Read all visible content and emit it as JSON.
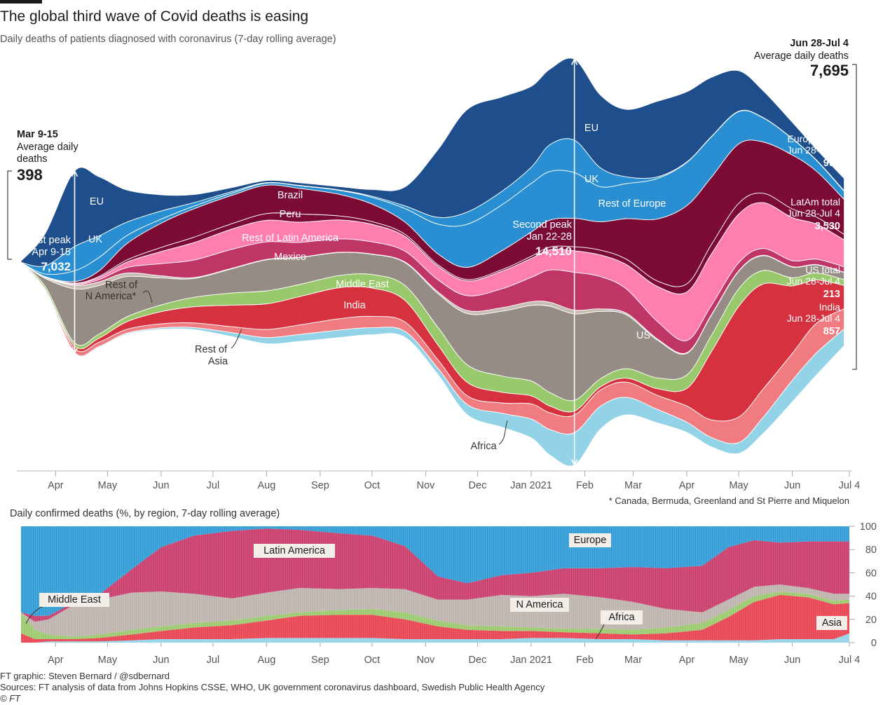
{
  "title": "The global third wave of Covid deaths is easing",
  "subtitle": "Daily deaths of patients diagnosed with coronavirus (7-day rolling average)",
  "colors": {
    "EU": "#1f4e8c",
    "UK": "#2a8fd2",
    "Rest of Europe": "#2a8fd2",
    "Brazil": "#7b0a35",
    "Peru": "#7b0a35",
    "Rest of Latin America": "#ff7eb0",
    "Mexico": "#bf3566",
    "Rest of N America": "#c9bcb3",
    "US": "#968c86",
    "Middle East": "#9ac96d",
    "India": "#d6313f",
    "Rest of Asia": "#f07c82",
    "Africa": "#93d3e8",
    "lower_Europe": "#2f9bd6",
    "lower_Latin America": "#c93a6b",
    "lower_N America": "#bdb3ad",
    "lower_Middle East": "#9ac96d",
    "lower_Asia": "#e9424f",
    "lower_Africa": "#93d3e8"
  },
  "chart_data": [
    {
      "type": "area",
      "subtitle": "Daily deaths of patients diagnosed with coronavirus (7-day rolling average)",
      "x_ticks": [
        "Apr",
        "May",
        "Jun",
        "Jul",
        "Aug",
        "Sep",
        "Oct",
        "Nov",
        "Dec",
        "Jan 2021",
        "Feb",
        "Mar",
        "Apr",
        "May",
        "Jun",
        "Jul 4"
      ],
      "x": [
        "2020-03-12",
        "2020-03-26",
        "2020-04-12",
        "2020-04-26",
        "2020-05-12",
        "2020-06-01",
        "2020-06-20",
        "2020-07-12",
        "2020-08-01",
        "2020-08-20",
        "2020-09-12",
        "2020-10-01",
        "2020-10-20",
        "2020-11-08",
        "2020-11-25",
        "2020-12-15",
        "2021-01-01",
        "2021-01-12",
        "2021-01-26",
        "2021-02-10",
        "2021-02-25",
        "2021-03-15",
        "2021-04-01",
        "2021-04-15",
        "2021-05-01",
        "2021-05-15",
        "2021-06-01",
        "2021-06-15",
        "2021-07-01"
      ],
      "series": [
        {
          "name": "Africa",
          "values": [
            1,
            10,
            30,
            35,
            40,
            55,
            80,
            150,
            230,
            260,
            280,
            260,
            220,
            230,
            380,
            520,
            700,
            950,
            1200,
            850,
            650,
            500,
            380,
            350,
            400,
            600,
            800,
            820,
            620
          ]
        },
        {
          "name": "Rest of Asia",
          "values": [
            3,
            40,
            150,
            160,
            140,
            150,
            170,
            220,
            300,
            350,
            420,
            420,
            350,
            320,
            320,
            380,
            560,
            620,
            650,
            600,
            560,
            520,
            600,
            650,
            950,
            1050,
            1000,
            1100,
            750
          ]
        },
        {
          "name": "India",
          "values": [
            1,
            10,
            90,
            150,
            280,
            450,
            600,
            800,
            950,
            1050,
            1150,
            1050,
            800,
            550,
            500,
            400,
            300,
            250,
            150,
            120,
            150,
            250,
            650,
            2500,
            4100,
            3900,
            2500,
            1600,
            860
          ]
        },
        {
          "name": "Middle East",
          "values": [
            5,
            100,
            120,
            150,
            180,
            250,
            350,
            450,
            480,
            450,
            450,
            500,
            550,
            650,
            650,
            600,
            550,
            500,
            400,
            300,
            350,
            400,
            500,
            600,
            650,
            500,
            300,
            260,
            220
          ]
        },
        {
          "name": "US",
          "values": [
            5,
            300,
            2000,
            1800,
            1500,
            1000,
            700,
            900,
            1150,
            1000,
            850,
            750,
            850,
            1250,
            1900,
            2400,
            2800,
            3200,
            3200,
            2500,
            2000,
            1400,
            800,
            750,
            650,
            550,
            400,
            300,
            260
          ]
        },
        {
          "name": "Rest of N America",
          "values": [
            1,
            40,
            130,
            140,
            130,
            80,
            30,
            20,
            15,
            12,
            10,
            12,
            20,
            60,
            110,
            130,
            140,
            150,
            140,
            90,
            60,
            40,
            25,
            20,
            20,
            18,
            15,
            12,
            10
          ]
        },
        {
          "name": "Mexico",
          "values": [
            0,
            5,
            30,
            80,
            200,
            450,
            650,
            700,
            650,
            550,
            500,
            450,
            400,
            450,
            550,
            700,
            900,
            1200,
            1400,
            1200,
            900,
            650,
            450,
            350,
            300,
            250,
            220,
            200,
            200
          ]
        },
        {
          "name": "Rest of Latin America",
          "values": [
            0,
            10,
            40,
            80,
            200,
            450,
            650,
            750,
            800,
            750,
            700,
            650,
            550,
            500,
            550,
            650,
            700,
            750,
            800,
            800,
            900,
            1300,
            1800,
            1900,
            1800,
            1700,
            1600,
            1300,
            1000
          ]
        },
        {
          "name": "Peru",
          "values": [
            0,
            3,
            10,
            40,
            80,
            150,
            200,
            200,
            250,
            300,
            150,
            100,
            80,
            60,
            50,
            60,
            80,
            100,
            150,
            180,
            200,
            200,
            300,
            350,
            400,
            350,
            320,
            260,
            200
          ]
        },
        {
          "name": "Brazil",
          "values": [
            0,
            5,
            60,
            200,
            600,
            900,
            1050,
            1050,
            1050,
            950,
            800,
            650,
            450,
            400,
            450,
            700,
            900,
            1000,
            1050,
            1050,
            1500,
            2300,
            2900,
            2500,
            2200,
            1900,
            2000,
            1700,
            1300
          ]
        },
        {
          "name": "Rest of Europe",
          "values": [
            5,
            100,
            400,
            500,
            300,
            150,
            100,
            80,
            80,
            100,
            150,
            250,
            500,
            1100,
            1600,
            1700,
            1800,
            1800,
            1700,
            1300,
            1300,
            1500,
            1600,
            1500,
            1200,
            900,
            600,
            400,
            300
          ]
        },
        {
          "name": "UK",
          "values": [
            5,
            300,
            900,
            800,
            500,
            300,
            130,
            60,
            15,
            10,
            15,
            40,
            100,
            250,
            450,
            500,
            600,
            1000,
            1200,
            700,
            250,
            60,
            20,
            15,
            12,
            10,
            10,
            15,
            25
          ]
        },
        {
          "name": "EU",
          "values": [
            50,
            1200,
            2800,
            2200,
            1200,
            600,
            300,
            150,
            80,
            100,
            120,
            250,
            700,
            2500,
            3800,
            3500,
            3000,
            2800,
            3000,
            2700,
            2500,
            2800,
            2600,
            2200,
            1500,
            1000,
            600,
            400,
            450
          ]
        }
      ],
      "annotations": [
        {
          "label": "Mar 9-15",
          "sub": "Average daily",
          "sub2": "deaths",
          "value": "398"
        },
        {
          "label": "First peak",
          "sub": "Apr 9-15",
          "value": "7,032"
        },
        {
          "label": "Second peak",
          "sub": "Jan 22-28",
          "value": "14,510"
        },
        {
          "label": "Jun 28-Jul 4",
          "sub": "Average daily deaths",
          "value": "7,695"
        },
        {
          "label": "Europe total",
          "sub": "Jun 28-Jul 4",
          "value": "995"
        },
        {
          "label": "LatAm total",
          "sub": "Jun 28-Jul 4",
          "value": "3,530"
        },
        {
          "label": "US total",
          "sub": "Jun 28-Jul 4",
          "value": "213"
        },
        {
          "label": "India",
          "sub": "Jun 28-Jul 4",
          "value": "857"
        }
      ],
      "region_labels": [
        "EU",
        "UK",
        "Brazil",
        "Peru",
        "Rest of Latin America",
        "Mexico",
        "Rest of",
        "N America*",
        "Middle East",
        "India",
        "Rest of",
        "Asia",
        "EU",
        "UK",
        "Rest of Europe",
        "US",
        "Africa"
      ]
    },
    {
      "type": "area",
      "title": "Daily confirmed deaths (%, by region, 7-day rolling average)",
      "ylim": [
        0,
        100
      ],
      "y_ticks": [
        0,
        20,
        40,
        60,
        80,
        100
      ],
      "x_ticks": [
        "Apr",
        "May",
        "Jun",
        "Jul",
        "Aug",
        "Sep",
        "Oct",
        "Nov",
        "Dec",
        "Jan 2021",
        "Feb",
        "Mar",
        "Apr",
        "May",
        "Jun",
        "Jul 4"
      ],
      "x": [
        "2020-03-12",
        "2020-03-20",
        "2020-03-28",
        "2020-04-12",
        "2020-04-26",
        "2020-05-15",
        "2020-06-01",
        "2020-06-20",
        "2020-07-12",
        "2020-08-01",
        "2020-08-20",
        "2020-09-12",
        "2020-10-01",
        "2020-10-20",
        "2020-11-08",
        "2020-11-25",
        "2020-12-15",
        "2021-01-01",
        "2021-01-20",
        "2021-02-10",
        "2021-03-01",
        "2021-03-20",
        "2021-04-10",
        "2021-04-25",
        "2021-05-10",
        "2021-05-25",
        "2021-06-10",
        "2021-06-25",
        "2021-07-04"
      ],
      "series": [
        {
          "name": "Africa",
          "values": [
            0,
            0,
            1,
            1,
            1,
            2,
            3,
            3,
            3,
            4,
            4,
            4,
            4,
            3,
            3,
            3,
            3,
            4,
            4,
            3,
            3,
            2,
            2,
            2,
            2,
            3,
            3,
            3,
            8
          ]
        },
        {
          "name": "Asia",
          "values": [
            8,
            3,
            2,
            2,
            3,
            5,
            7,
            10,
            12,
            15,
            19,
            20,
            20,
            17,
            11,
            8,
            7,
            6,
            5,
            5,
            4,
            6,
            9,
            20,
            33,
            38,
            36,
            30,
            26
          ]
        },
        {
          "name": "Middle East",
          "values": [
            18,
            8,
            4,
            2,
            3,
            4,
            4,
            4,
            4,
            4,
            3,
            4,
            5,
            6,
            5,
            4,
            4,
            3,
            3,
            4,
            4,
            5,
            6,
            6,
            5,
            3,
            3,
            3,
            3
          ]
        },
        {
          "name": "N America",
          "values": [
            0,
            7,
            13,
            28,
            30,
            32,
            30,
            25,
            19,
            20,
            21,
            18,
            18,
            20,
            18,
            22,
            27,
            27,
            30,
            27,
            24,
            16,
            9,
            9,
            8,
            6,
            5,
            6,
            5
          ]
        },
        {
          "name": "Latin America",
          "values": [
            0,
            5,
            3,
            2,
            4,
            20,
            38,
            50,
            58,
            55,
            50,
            48,
            45,
            37,
            20,
            14,
            17,
            20,
            22,
            25,
            30,
            35,
            40,
            45,
            40,
            36,
            40,
            45,
            45
          ]
        },
        {
          "name": "Europe",
          "values": [
            74,
            77,
            77,
            65,
            59,
            37,
            18,
            8,
            4,
            2,
            3,
            6,
            8,
            17,
            43,
            49,
            42,
            40,
            36,
            36,
            35,
            36,
            34,
            18,
            12,
            14,
            13,
            13,
            13
          ]
        }
      ],
      "series_labels": [
        "Europe",
        "Latin America",
        "Middle East",
        "N America",
        "Africa",
        "Asia"
      ]
    }
  ],
  "lower_chart_label": "Daily confirmed deaths (%, by region, 7-day rolling average)",
  "footnote": "* Canada, Bermuda, Greenland and St Pierre and Miquelon",
  "credits": {
    "line1": "FT graphic: Steven Bernard / @sdbernard",
    "line2": "Sources: FT analysis of data from Johns Hopkins CSSE, WHO, UK government coronavirus dashboard, Swedish Public Health Agency",
    "line3": "© FT"
  }
}
